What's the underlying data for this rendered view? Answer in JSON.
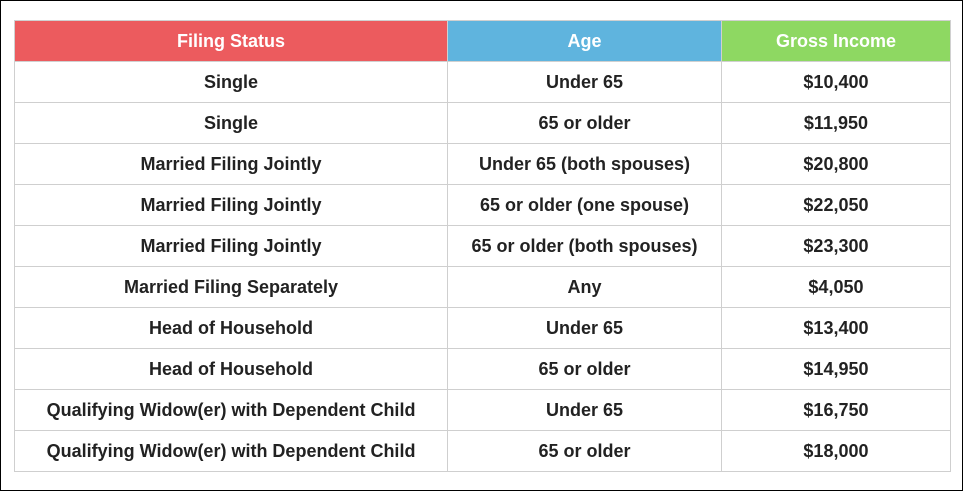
{
  "table": {
    "headers": [
      "Filing Status",
      "Age",
      "Gross Income"
    ],
    "header_colors": [
      "#ec5b5e",
      "#5fb4de",
      "#8ed862"
    ],
    "rows": [
      [
        "Single",
        "Under 65",
        "$10,400"
      ],
      [
        "Single",
        "65 or older",
        "$11,950"
      ],
      [
        "Married Filing Jointly",
        "Under 65 (both spouses)",
        "$20,800"
      ],
      [
        "Married Filing Jointly",
        "65 or older (one spouse)",
        "$22,050"
      ],
      [
        "Married Filing Jointly",
        "65 or older (both spouses)",
        "$23,300"
      ],
      [
        "Married Filing Separately",
        "Any",
        "$4,050"
      ],
      [
        "Head of Household",
        "Under 65",
        "$13,400"
      ],
      [
        "Head of Household",
        "65 or older",
        "$14,950"
      ],
      [
        "Qualifying Widow(er) with Dependent Child",
        "Under 65",
        "$16,750"
      ],
      [
        "Qualifying Widow(er) with Dependent Child",
        "65 or older",
        "$18,000"
      ]
    ]
  }
}
